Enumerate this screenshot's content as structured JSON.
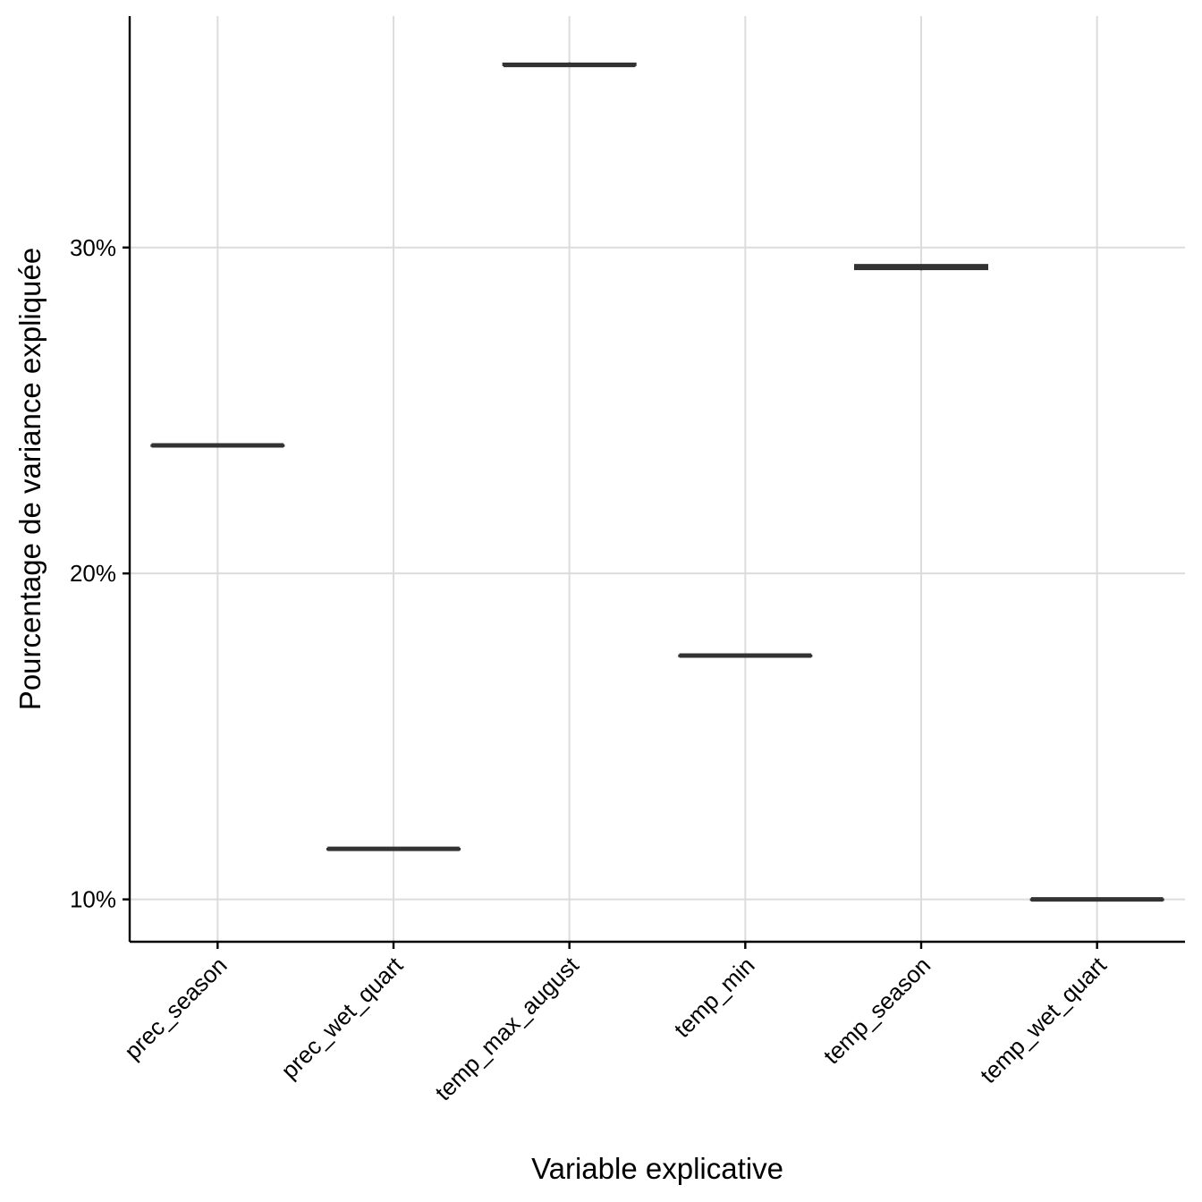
{
  "chart_data": {
    "type": "boxplot",
    "xlabel": "Variable explicative",
    "ylabel": "Pourcentage de variance expliquée",
    "categories": [
      "prec_season",
      "prec_wet_quart",
      "temp_max_august",
      "temp_min",
      "temp_season",
      "temp_wet_quart"
    ],
    "y_ticks": [
      10,
      20,
      30
    ],
    "y_tick_labels": [
      "10%",
      "20%",
      "30%"
    ],
    "ylim": [
      8.7,
      37.1
    ],
    "boxes": [
      {
        "category": "prec_season",
        "q1": 23.93,
        "median": 23.93,
        "q3": 23.93,
        "min": 23.93,
        "max": 23.93
      },
      {
        "category": "prec_wet_quart",
        "q1": 11.55,
        "median": 11.55,
        "q3": 11.55,
        "min": 11.55,
        "max": 11.55
      },
      {
        "category": "temp_max_august",
        "q1": 35.6,
        "median": 35.6,
        "q3": 35.64,
        "min": 35.55,
        "max": 35.68
      },
      {
        "category": "temp_min",
        "q1": 17.48,
        "median": 17.48,
        "q3": 17.48,
        "min": 17.48,
        "max": 17.48
      },
      {
        "category": "temp_season",
        "q1": 29.34,
        "median": 29.42,
        "q3": 29.46,
        "min": 29.3,
        "max": 29.47
      },
      {
        "category": "temp_wet_quart",
        "q1": 10.0,
        "median": 10.0,
        "q3": 10.0,
        "min": 10.0,
        "max": 10.0
      }
    ],
    "colors": {
      "box_line": "#333333",
      "grid": "#dcdcdc",
      "axis": "#000000",
      "background": "#ffffff"
    },
    "grid": true,
    "legend": "none"
  }
}
